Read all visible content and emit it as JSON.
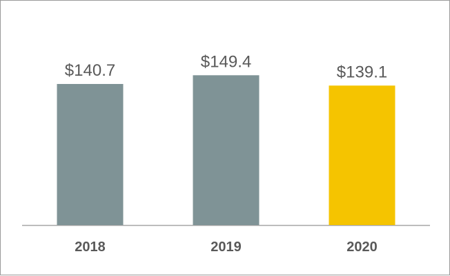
{
  "chart_data": {
    "type": "bar",
    "categories": [
      "2018",
      "2019",
      "2020"
    ],
    "values": [
      140.7,
      149.4,
      139.1
    ],
    "value_labels": [
      "$140.7",
      "$149.4",
      "$139.1"
    ],
    "title": "",
    "xlabel": "",
    "ylabel": "",
    "ylim": [
      0,
      160
    ],
    "grid": false,
    "legend": "none",
    "bar_colors": [
      "#7f9396",
      "#7f9396",
      "#f5c400"
    ],
    "axis_color": "#a6a6a6"
  }
}
